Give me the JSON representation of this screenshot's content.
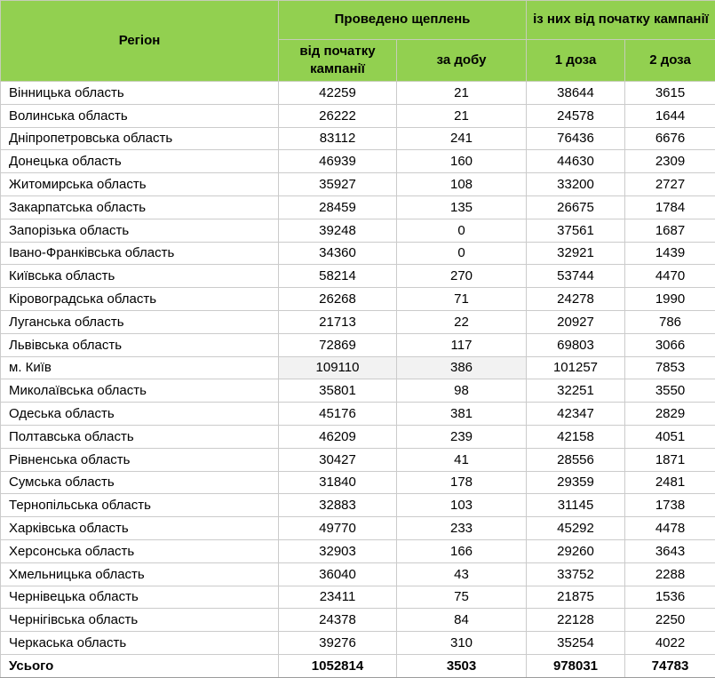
{
  "table": {
    "header": {
      "region": "Регіон",
      "group_vaccinations": "Проведено щеплень",
      "group_since_start": "із них від початку кампанії",
      "sub_since_campaign": "від початку кампанії",
      "sub_per_day": "за добу",
      "sub_dose1": "1 доза",
      "sub_dose2": "2 доза"
    },
    "rows": [
      {
        "region": "Вінницька область",
        "total_campaign": "42259",
        "per_day": "21",
        "dose1": "38644",
        "dose2": "3615",
        "highlight": false
      },
      {
        "region": "Волинська область",
        "total_campaign": "26222",
        "per_day": "21",
        "dose1": "24578",
        "dose2": "1644",
        "highlight": false
      },
      {
        "region": "Дніпропетровська область",
        "total_campaign": "83112",
        "per_day": "241",
        "dose1": "76436",
        "dose2": "6676",
        "highlight": false
      },
      {
        "region": "Донецька область",
        "total_campaign": "46939",
        "per_day": "160",
        "dose1": "44630",
        "dose2": "2309",
        "highlight": false
      },
      {
        "region": "Житомирська область",
        "total_campaign": "35927",
        "per_day": "108",
        "dose1": "33200",
        "dose2": "2727",
        "highlight": false
      },
      {
        "region": "Закарпатська область",
        "total_campaign": "28459",
        "per_day": "135",
        "dose1": "26675",
        "dose2": "1784",
        "highlight": false
      },
      {
        "region": "Запорізька область",
        "total_campaign": "39248",
        "per_day": "0",
        "dose1": "37561",
        "dose2": "1687",
        "highlight": false
      },
      {
        "region": "Івано-Франківська область",
        "total_campaign": "34360",
        "per_day": "0",
        "dose1": "32921",
        "dose2": "1439",
        "highlight": false
      },
      {
        "region": "Київська область",
        "total_campaign": "58214",
        "per_day": "270",
        "dose1": "53744",
        "dose2": "4470",
        "highlight": false
      },
      {
        "region": "Кіровоградська область",
        "total_campaign": "26268",
        "per_day": "71",
        "dose1": "24278",
        "dose2": "1990",
        "highlight": false
      },
      {
        "region": "Луганська область",
        "total_campaign": "21713",
        "per_day": "22",
        "dose1": "20927",
        "dose2": "786",
        "highlight": false
      },
      {
        "region": "Львівська область",
        "total_campaign": "72869",
        "per_day": "117",
        "dose1": "69803",
        "dose2": "3066",
        "highlight": false
      },
      {
        "region": "м. Київ",
        "total_campaign": "109110",
        "per_day": "386",
        "dose1": "101257",
        "dose2": "7853",
        "highlight": true
      },
      {
        "region": "Миколаївська область",
        "total_campaign": "35801",
        "per_day": "98",
        "dose1": "32251",
        "dose2": "3550",
        "highlight": false
      },
      {
        "region": "Одеська область",
        "total_campaign": "45176",
        "per_day": "381",
        "dose1": "42347",
        "dose2": "2829",
        "highlight": false
      },
      {
        "region": "Полтавська область",
        "total_campaign": "46209",
        "per_day": "239",
        "dose1": "42158",
        "dose2": "4051",
        "highlight": false
      },
      {
        "region": "Рівненська область",
        "total_campaign": "30427",
        "per_day": "41",
        "dose1": "28556",
        "dose2": "1871",
        "highlight": false
      },
      {
        "region": "Сумська область",
        "total_campaign": "31840",
        "per_day": "178",
        "dose1": "29359",
        "dose2": "2481",
        "highlight": false
      },
      {
        "region": "Тернопільська область",
        "total_campaign": "32883",
        "per_day": "103",
        "dose1": "31145",
        "dose2": "1738",
        "highlight": false
      },
      {
        "region": "Харківська область",
        "total_campaign": "49770",
        "per_day": "233",
        "dose1": "45292",
        "dose2": "4478",
        "highlight": false
      },
      {
        "region": "Херсонська область",
        "total_campaign": "32903",
        "per_day": "166",
        "dose1": "29260",
        "dose2": "3643",
        "highlight": false
      },
      {
        "region": "Хмельницька область",
        "total_campaign": "36040",
        "per_day": "43",
        "dose1": "33752",
        "dose2": "2288",
        "highlight": false
      },
      {
        "region": "Чернівецька область",
        "total_campaign": "23411",
        "per_day": "75",
        "dose1": "21875",
        "dose2": "1536",
        "highlight": false
      },
      {
        "region": "Чернігівська область",
        "total_campaign": "24378",
        "per_day": "84",
        "dose1": "22128",
        "dose2": "2250",
        "highlight": false
      },
      {
        "region": "Черкаська область",
        "total_campaign": "39276",
        "per_day": "310",
        "dose1": "35254",
        "dose2": "4022",
        "highlight": false
      }
    ],
    "total": {
      "label": "Усього",
      "total_campaign": "1052814",
      "per_day": "3503",
      "dose1": "978031",
      "dose2": "74783"
    }
  },
  "colors": {
    "header_bg": "#92d050",
    "row_border": "#cbcbcb",
    "highlight_bg": "#f2f2f2",
    "text": "#000000"
  }
}
